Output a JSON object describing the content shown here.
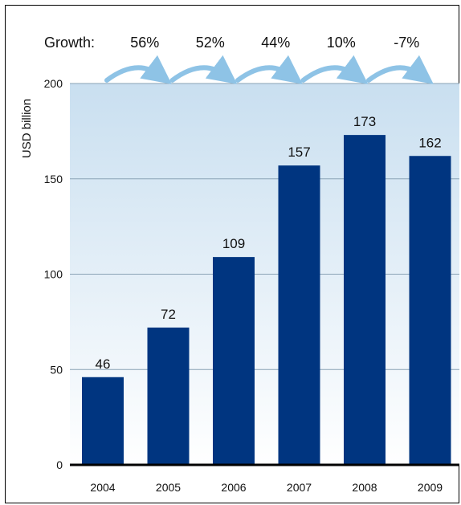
{
  "chart_data": {
    "type": "bar",
    "title": "",
    "xlabel": "",
    "ylabel": "USD billion",
    "categories": [
      "2004",
      "2005",
      "2006",
      "2007",
      "2008",
      "2009"
    ],
    "values": [
      46,
      72,
      109,
      157,
      173,
      162
    ],
    "data_labels": [
      "46",
      "72",
      "109",
      "157",
      "173",
      "162"
    ],
    "ylim": [
      0,
      200
    ],
    "yticks": [
      0,
      50,
      100,
      150,
      200
    ],
    "grid": true,
    "growth_label": "Growth:",
    "growth_rates": [
      "56%",
      "52%",
      "44%",
      "10%",
      "-7%"
    ],
    "colors": {
      "bar": "#003580",
      "grid": "#8aa3b5",
      "arrow": "#8ec3e6",
      "background_top": "#c9dff0",
      "background_bottom": "#ffffff"
    }
  }
}
